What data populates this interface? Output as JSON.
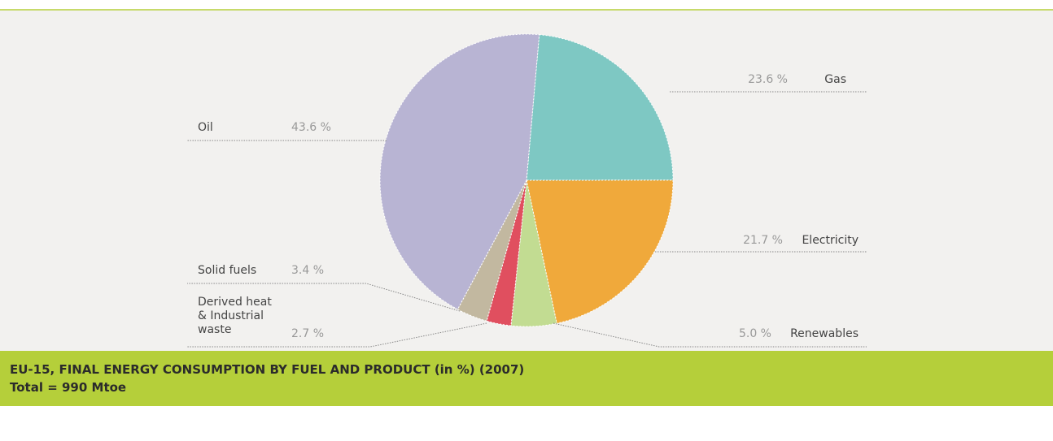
{
  "chart_data": {
    "type": "pie",
    "title": "EU-15, FINAL ENERGY CONSUMPTION BY FUEL AND PRODUCT (in %) (2007)",
    "subtitle": "Total = 990 Mtoe",
    "categories": [
      "Gas",
      "Electricity",
      "Renewables",
      "Derived heat\n& Industrial\nwaste",
      "Solid fuels",
      "Oil"
    ],
    "values": [
      23.6,
      21.7,
      5.0,
      2.7,
      3.4,
      43.6
    ],
    "value_labels": [
      "23.6 %",
      "21.7 %",
      "5.0 %",
      "2.7 %",
      "3.4 %",
      "43.6 %"
    ],
    "colors": [
      "#7ec8c3",
      "#f0a93b",
      "#c2dc92",
      "#e04f5f",
      "#c2b8a0",
      "#b8b4d3"
    ]
  }
}
